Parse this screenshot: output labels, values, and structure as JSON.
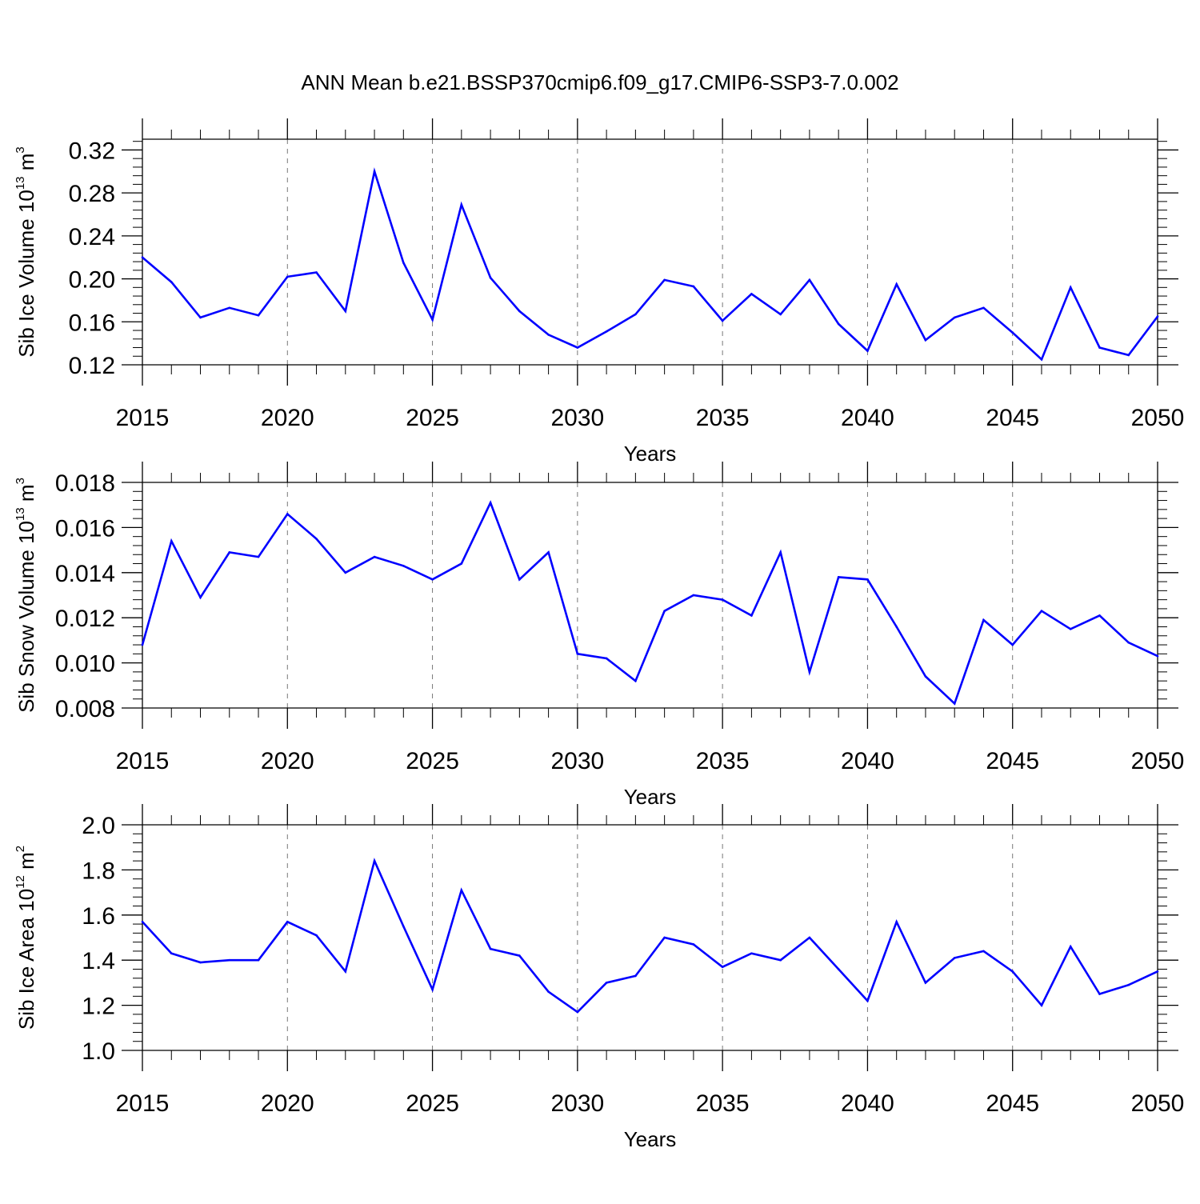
{
  "figure": {
    "title": "ANN Mean b.e21.BSSP370cmip6.f09_g17.CMIP6-SSP3-7.0.002"
  },
  "colors": {
    "series": "#0000ff",
    "axis": "#000000",
    "grid": "#777777"
  },
  "chart_data": [
    {
      "type": "line",
      "name": "sib-ice-volume",
      "ylabel_main": "Sib Ice Volume 10",
      "ylabel_exp": "13",
      "ylabel_unit": " m",
      "ylabel_unit_exp": "3",
      "xlabel": "Years",
      "xlim": [
        2015,
        2050
      ],
      "ylim": [
        0.12,
        0.33
      ],
      "xticks": [
        "2015",
        "2020",
        "2025",
        "2030",
        "2035",
        "2040",
        "2045",
        "2050"
      ],
      "yticks": [
        "0.12",
        "0.16",
        "0.20",
        "0.24",
        "0.28",
        "0.32"
      ],
      "ytick_values": [
        0.12,
        0.16,
        0.2,
        0.24,
        0.28,
        0.32
      ],
      "grid": "vertical-dashed",
      "x": [
        2015,
        2016,
        2017,
        2018,
        2019,
        2020,
        2021,
        2022,
        2023,
        2024,
        2025,
        2026,
        2027,
        2028,
        2029,
        2030,
        2031,
        2032,
        2033,
        2034,
        2035,
        2036,
        2037,
        2038,
        2039,
        2040,
        2041,
        2042,
        2043,
        2044,
        2045,
        2046,
        2047,
        2048,
        2049,
        2050
      ],
      "values": [
        0.22,
        0.197,
        0.164,
        0.173,
        0.166,
        0.202,
        0.206,
        0.17,
        0.3,
        0.215,
        0.162,
        0.269,
        0.201,
        0.17,
        0.148,
        0.136,
        0.151,
        0.167,
        0.199,
        0.193,
        0.161,
        0.186,
        0.167,
        0.199,
        0.158,
        0.133,
        0.195,
        0.143,
        0.164,
        0.173,
        0.15,
        0.125,
        0.192,
        0.136,
        0.129,
        0.165
      ]
    },
    {
      "type": "line",
      "name": "sib-snow-volume",
      "ylabel_main": "Sib Snow Volume 10",
      "ylabel_exp": "13",
      "ylabel_unit": " m",
      "ylabel_unit_exp": "3",
      "xlabel": "Years",
      "xlim": [
        2015,
        2050
      ],
      "ylim": [
        0.008,
        0.018
      ],
      "xticks": [
        "2015",
        "2020",
        "2025",
        "2030",
        "2035",
        "2040",
        "2045",
        "2050"
      ],
      "yticks": [
        "0.008",
        "0.010",
        "0.012",
        "0.014",
        "0.016",
        "0.018"
      ],
      "ytick_values": [
        0.008,
        0.01,
        0.012,
        0.014,
        0.016,
        0.018
      ],
      "grid": "vertical-dashed",
      "x": [
        2015,
        2016,
        2017,
        2018,
        2019,
        2020,
        2021,
        2022,
        2023,
        2024,
        2025,
        2026,
        2027,
        2028,
        2029,
        2030,
        2031,
        2032,
        2033,
        2034,
        2035,
        2036,
        2037,
        2038,
        2039,
        2040,
        2041,
        2042,
        2043,
        2044,
        2045,
        2046,
        2047,
        2048,
        2049,
        2050
      ],
      "values": [
        0.0108,
        0.0154,
        0.0129,
        0.0149,
        0.0147,
        0.0166,
        0.0155,
        0.014,
        0.0147,
        0.0143,
        0.0137,
        0.0144,
        0.0171,
        0.0137,
        0.0149,
        0.0104,
        0.0102,
        0.0092,
        0.0123,
        0.013,
        0.0128,
        0.0121,
        0.0149,
        0.0096,
        0.0138,
        0.0137,
        0.0116,
        0.0094,
        0.0082,
        0.0119,
        0.0108,
        0.0123,
        0.0115,
        0.0121,
        0.0109,
        0.0103
      ]
    },
    {
      "type": "line",
      "name": "sib-ice-area",
      "ylabel_main": "Sib Ice Area 10",
      "ylabel_exp": "12",
      "ylabel_unit": " m",
      "ylabel_unit_exp": "2",
      "xlabel": "Years",
      "xlim": [
        2015,
        2050
      ],
      "ylim": [
        1.0,
        2.0
      ],
      "xticks": [
        "2015",
        "2020",
        "2025",
        "2030",
        "2035",
        "2040",
        "2045",
        "2050"
      ],
      "yticks": [
        "1.0",
        "1.2",
        "1.4",
        "1.6",
        "1.8",
        "2.0"
      ],
      "ytick_values": [
        1.0,
        1.2,
        1.4,
        1.6,
        1.8,
        2.0
      ],
      "grid": "vertical-dashed",
      "x": [
        2015,
        2016,
        2017,
        2018,
        2019,
        2020,
        2021,
        2022,
        2023,
        2024,
        2025,
        2026,
        2027,
        2028,
        2029,
        2030,
        2031,
        2032,
        2033,
        2034,
        2035,
        2036,
        2037,
        2038,
        2039,
        2040,
        2041,
        2042,
        2043,
        2044,
        2045,
        2046,
        2047,
        2048,
        2049,
        2050
      ],
      "values": [
        1.57,
        1.43,
        1.39,
        1.4,
        1.4,
        1.57,
        1.51,
        1.35,
        1.84,
        1.55,
        1.27,
        1.71,
        1.45,
        1.42,
        1.26,
        1.17,
        1.3,
        1.33,
        1.5,
        1.47,
        1.37,
        1.43,
        1.4,
        1.5,
        1.36,
        1.22,
        1.57,
        1.3,
        1.41,
        1.44,
        1.35,
        1.2,
        1.46,
        1.25,
        1.29,
        1.35
      ]
    }
  ]
}
